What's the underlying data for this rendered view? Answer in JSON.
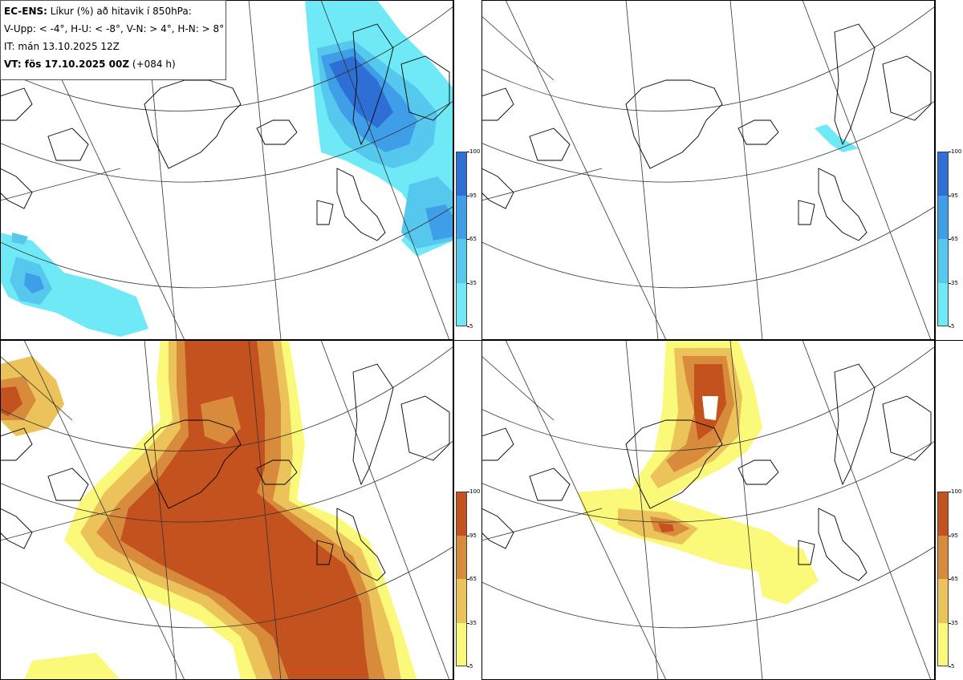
{
  "info": {
    "model_label": "EC-ENS:",
    "title_rest": "Líkur (%) að hitavik í 850hPa:",
    "legend_line": "V-Upp: < -4°, H-U: < -8°, V-N: > 4°, H-N: > 8°",
    "it_line": "IT: mán 13.10.2025 12Z",
    "vt_label": "VT: fös 17.10.2025 00Z",
    "vt_rest": "(+084 h)"
  },
  "colorbars": {
    "ticks": [
      "100",
      "95",
      "65",
      "35",
      "5"
    ],
    "cold_colors": [
      "#2d6fd4",
      "#3f9ee8",
      "#56c8ee",
      "#6fe9f6"
    ],
    "warm_colors": [
      "#c4521e",
      "#d98b3c",
      "#ecc35a",
      "#fbf97a"
    ]
  },
  "panels": [
    {
      "id": "tl",
      "meaning": "cold",
      "threshold": "< -4°"
    },
    {
      "id": "tr",
      "meaning": "cold",
      "threshold": "< -8°"
    },
    {
      "id": "bl",
      "meaning": "warm",
      "threshold": "> 4°"
    },
    {
      "id": "br",
      "meaning": "warm",
      "threshold": "> 8°"
    }
  ]
}
